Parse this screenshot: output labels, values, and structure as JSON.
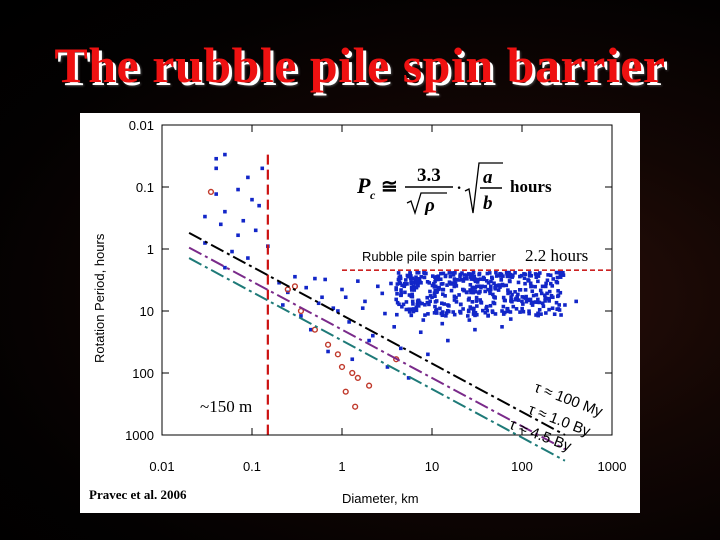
{
  "slide": {
    "title": "The rubble pile spin barrier"
  },
  "credit": "Pravec et al. 2006",
  "colors": {
    "points": "#1226c8",
    "binaries": "#c0392b",
    "barrier": "#cc2222",
    "size_limit": "#cc1111",
    "tau_100My": "#000000",
    "tau_1By": "#7a2a8a",
    "tau_45By": "#1e7a78"
  },
  "formula": {
    "lhs": "P",
    "lhs_sub": "c",
    "approx": "≅",
    "numerator": "3.3",
    "denominator": "ρ",
    "a": "a",
    "b": "b",
    "suffix": "hours"
  },
  "chart_data": {
    "type": "scatter",
    "xscale": "log",
    "yscale": "log",
    "y_inverted": true,
    "xlim": [
      0.01,
      1000
    ],
    "ylim": [
      0.01,
      1000
    ],
    "xlabel": "Diameter, km",
    "ylabel": "Rotation Period, hours",
    "x_ticks": [
      "0.01",
      "0.1",
      "1",
      "10",
      "100",
      "1000"
    ],
    "y_ticks": [
      "0.01",
      "0.1",
      "1",
      "10",
      "100",
      "1000"
    ],
    "grid": false,
    "annotations": {
      "barrier_label": "Rubble pile spin barrier",
      "barrier_value": "2.2 hours",
      "size_limit": "~150 m",
      "tau_100My": "τ ≈ 100 My",
      "tau_1By": "τ ≈ 1.0 By",
      "tau_45By": "τ ≈ 4.5 By"
    },
    "reference_lines": [
      {
        "label": "2.2 hours",
        "kind": "horizontal",
        "y": 2.2,
        "x_range": [
          1.0,
          1000
        ]
      },
      {
        "label": "~150 m",
        "kind": "vertical",
        "x": 0.15,
        "y_range": [
          0.03,
          1000
        ]
      },
      {
        "label": "τ ≈ 100 My",
        "kind": "line",
        "points": [
          [
            0.02,
            0.55
          ],
          [
            300,
            1000
          ]
        ]
      },
      {
        "label": "τ ≈ 1.0 By",
        "kind": "line",
        "points": [
          [
            0.02,
            0.95
          ],
          [
            300,
            1700
          ]
        ]
      },
      {
        "label": "τ ≈ 4.5 By",
        "kind": "line",
        "points": [
          [
            0.02,
            1.4
          ],
          [
            300,
            2600
          ]
        ]
      }
    ],
    "series": [
      {
        "kind": "asteroids",
        "points": [
          [
            0.04,
            0.035
          ],
          [
            0.05,
            0.03
          ],
          [
            0.04,
            0.05
          ],
          [
            0.09,
            0.07
          ],
          [
            0.07,
            0.11
          ],
          [
            0.04,
            0.13
          ],
          [
            0.1,
            0.16
          ],
          [
            0.12,
            0.2
          ],
          [
            0.05,
            0.25
          ],
          [
            0.03,
            0.3
          ],
          [
            0.08,
            0.35
          ],
          [
            0.045,
            0.4
          ],
          [
            0.11,
            0.5
          ],
          [
            0.07,
            0.6
          ],
          [
            0.13,
            0.05
          ],
          [
            0.03,
            0.8
          ],
          [
            0.06,
            1.1
          ],
          [
            0.09,
            1.4
          ],
          [
            0.15,
            0.9
          ],
          [
            0.05,
            2.0
          ],
          [
            0.2,
            3.5
          ],
          [
            0.25,
            5.0
          ],
          [
            0.3,
            2.8
          ],
          [
            0.22,
            8.0
          ],
          [
            0.35,
            12.0
          ],
          [
            0.4,
            4.2
          ],
          [
            0.5,
            3.0
          ],
          [
            0.6,
            6.0
          ],
          [
            0.45,
            20.0
          ],
          [
            0.8,
            9.0
          ],
          [
            1.0,
            4.5
          ],
          [
            1.2,
            15.0
          ],
          [
            1.5,
            3.3
          ],
          [
            1.8,
            7.0
          ],
          [
            2.0,
            30.0
          ],
          [
            2.5,
            4.0
          ],
          [
            3.0,
            11.0
          ],
          [
            3.5,
            3.6
          ],
          [
            4.0,
            6.5
          ],
          [
            5.0,
            5.0
          ],
          [
            6.0,
            9.5
          ],
          [
            7.0,
            3.9
          ],
          [
            8.0,
            14.0
          ],
          [
            10.0,
            6.0
          ],
          [
            12.0,
            4.2
          ],
          [
            15.0,
            8.0
          ],
          [
            20.0,
            5.5
          ],
          [
            25.0,
            12.0
          ],
          [
            30.0,
            4.8
          ],
          [
            35.0,
            7.2
          ],
          [
            40.0,
            9.0
          ],
          [
            50.0,
            6.0
          ],
          [
            60.0,
            10.0
          ],
          [
            70.0,
            5.2
          ],
          [
            80.0,
            8.5
          ],
          [
            100.0,
            7.0
          ],
          [
            120.0,
            11.0
          ],
          [
            150.0,
            6.5
          ],
          [
            200.0,
            9.5
          ],
          [
            250.0,
            5.8
          ],
          [
            300.0,
            8.0
          ],
          [
            400.0,
            7.0
          ],
          [
            0.7,
            45.0
          ],
          [
            1.3,
            60.0
          ],
          [
            2.2,
            25.0
          ],
          [
            4.5,
            40.0
          ],
          [
            9.0,
            50.0
          ],
          [
            15.0,
            30.0
          ],
          [
            30.0,
            20.0
          ],
          [
            60.0,
            18.0
          ],
          [
            3.2,
            80.0
          ],
          [
            5.5,
            120.0
          ],
          [
            0.9,
            10.0
          ],
          [
            1.1,
            6.0
          ],
          [
            0.65,
            3.1
          ],
          [
            2.8,
            5.2
          ],
          [
            6.5,
            3.3
          ],
          [
            11.0,
            4.0
          ],
          [
            18.0,
            3.4
          ],
          [
            22.0,
            4.5
          ],
          [
            45.0,
            4.0
          ],
          [
            55.0,
            4.6
          ],
          [
            65.0,
            6.8
          ],
          [
            90.0,
            5.4
          ],
          [
            110.0,
            6.2
          ],
          [
            130.0,
            4.8
          ],
          [
            170.0,
            7.5
          ],
          [
            220.0,
            6.0
          ],
          [
            0.55,
            7.5
          ],
          [
            1.7,
            9.0
          ],
          [
            3.8,
            18.0
          ],
          [
            7.5,
            22.0
          ],
          [
            13.0,
            16.0
          ],
          [
            26.0,
            14.0
          ],
          [
            42.0,
            12.0
          ],
          [
            75.0,
            13.5
          ]
        ]
      },
      {
        "kind": "binaries",
        "points": [
          [
            0.035,
            0.12
          ],
          [
            0.3,
            4.0
          ],
          [
            0.35,
            10.0
          ],
          [
            0.5,
            20.0
          ],
          [
            0.7,
            35.0
          ],
          [
            0.9,
            50.0
          ],
          [
            1.0,
            80.0
          ],
          [
            1.3,
            100.0
          ],
          [
            1.5,
            120.0
          ],
          [
            2.0,
            160.0
          ],
          [
            1.1,
            200.0
          ],
          [
            1.4,
            350.0
          ],
          [
            4.0,
            60.0
          ],
          [
            0.25,
            4.5
          ]
        ]
      }
    ]
  }
}
